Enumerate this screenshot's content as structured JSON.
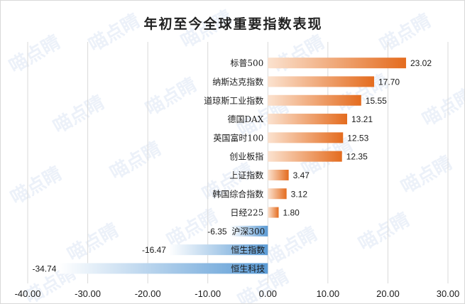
{
  "title": "年初至今全球重要指数表现",
  "watermark": "喵点睛",
  "colors": {
    "positive_dark": "#e46c1f",
    "positive_light": "#fbe2cf",
    "negative_dark": "#5b9bd5",
    "negative_light": "#ffffff",
    "grid": "#d9d9d9",
    "text": "#1a1a1a"
  },
  "chart_data": {
    "type": "bar",
    "orientation": "horizontal",
    "categories": [
      "标普500",
      "纳斯达克指数",
      "道琼斯工业指数",
      "德国DAX",
      "英国富时100",
      "创业板指",
      "上证指数",
      "韩国综合指数",
      "日经225",
      "沪深300",
      "恒生指数",
      "恒生科技"
    ],
    "values": [
      23.02,
      17.7,
      15.55,
      13.21,
      12.53,
      12.35,
      3.47,
      3.12,
      1.8,
      -6.35,
      -16.47,
      -34.74
    ],
    "value_labels": [
      "23.02",
      "17.70",
      "15.55",
      "13.21",
      "12.53",
      "12.35",
      "3.47",
      "3.12",
      "1.80",
      "-6.35",
      "-16.47",
      "-34.74"
    ],
    "xlim": [
      -40,
      30
    ],
    "xticks": [
      -40,
      -30,
      -20,
      -10,
      0,
      10,
      20,
      30
    ],
    "xtick_labels": [
      "-40.00",
      "-30.00",
      "-20.00",
      "-10.00",
      "0.00",
      "10.00",
      "20.00",
      "30.00"
    ],
    "grid": true,
    "legend": "none"
  }
}
